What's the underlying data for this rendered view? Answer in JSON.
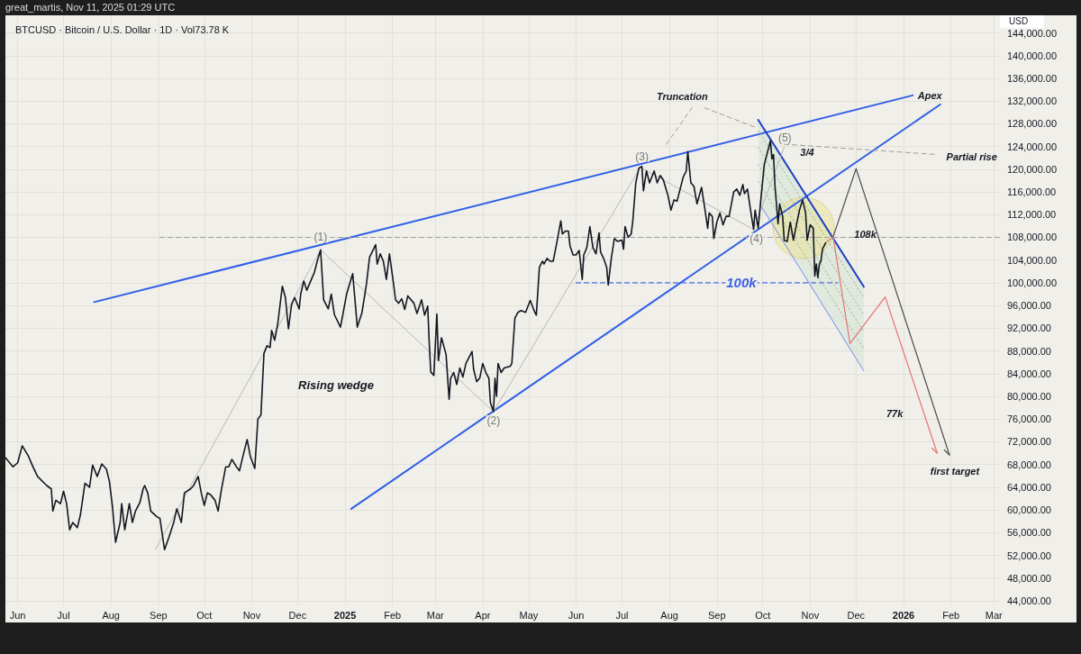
{
  "chart_data": {
    "type": "line",
    "title": "BTCUSD · Bitcoin / U.S. Dollar · 1D · Vol73.78 K",
    "ylabel": "USD",
    "annotations": [
      "great_martis, Nov 11, 2025 01:29 UTC",
      {
        "text": "(1)",
        "x": "2024-12-16",
        "y": 105800
      },
      {
        "text": "(2)",
        "x": "2025-04-08",
        "y": 77300
      },
      {
        "text": "(3)",
        "x": "2025-07-14",
        "y": 120500
      },
      {
        "text": "(4)",
        "x": "2025-09-25",
        "y": 109400
      },
      {
        "text": "(5)",
        "x": "2025-10-06",
        "y": 125000
      },
      {
        "text": "Truncation",
        "x": "2025-08-17",
        "y": 131300
      },
      {
        "text": "Apex",
        "x": "2026-01-07",
        "y": 133000
      },
      {
        "text": "3/4",
        "x": "2025-10-30",
        "y": 124100
      },
      {
        "text": "Partial rise",
        "x": "2026-01-22",
        "y": 122600
      },
      {
        "text": "108k",
        "x": "2025-12-07",
        "y": 108000
      },
      {
        "text": "100k",
        "x": "2025-09-17",
        "y": 100000
      },
      "Rising wedge",
      {
        "text": "77k",
        "x": "2026-01-14",
        "y": 77000
      },
      {
        "text": "first target",
        "x": "2026-01-31",
        "y": 69700
      }
    ],
    "xlim": [
      "2024-05-24",
      "2026-03-05"
    ],
    "ylim": [
      43200,
      147100
    ],
    "xticks": [
      {
        "value": "2024-06-01",
        "label": "Jun"
      },
      {
        "value": "2024-07-01",
        "label": "Jul"
      },
      {
        "value": "2024-08-01",
        "label": "Aug"
      },
      {
        "value": "2024-09-01",
        "label": "Sep"
      },
      {
        "value": "2024-10-01",
        "label": "Oct"
      },
      {
        "value": "2024-11-01",
        "label": "Nov"
      },
      {
        "value": "2024-12-01",
        "label": "Dec"
      },
      {
        "value": "2025-01-01",
        "label": "2025"
      },
      {
        "value": "2025-02-01",
        "label": "Feb"
      },
      {
        "value": "2025-03-01",
        "label": "Mar"
      },
      {
        "value": "2025-04-01",
        "label": "Apr"
      },
      {
        "value": "2025-05-01",
        "label": "May"
      },
      {
        "value": "2025-06-01",
        "label": "Jun"
      },
      {
        "value": "2025-07-01",
        "label": "Jul"
      },
      {
        "value": "2025-08-01",
        "label": "Aug"
      },
      {
        "value": "2025-09-01",
        "label": "Sep"
      },
      {
        "value": "2025-10-01",
        "label": "Oct"
      },
      {
        "value": "2025-11-01",
        "label": "Nov"
      },
      {
        "value": "2025-12-01",
        "label": "Dec"
      },
      {
        "value": "2026-01-01",
        "label": "2026"
      },
      {
        "value": "2026-02-01",
        "label": "Feb"
      },
      {
        "value": "2026-03-01",
        "label": "Mar"
      }
    ],
    "yticks": [
      {
        "value": 44000,
        "label": "44,000.00"
      },
      {
        "value": 48000,
        "label": "48,000.00"
      },
      {
        "value": 52000,
        "label": "52,000.00"
      },
      {
        "value": 56000,
        "label": "56,000.00"
      },
      {
        "value": 60000,
        "label": "60,000.00"
      },
      {
        "value": 64000,
        "label": "64,000.00"
      },
      {
        "value": 68000,
        "label": "68,000.00"
      },
      {
        "value": 72000,
        "label": "72,000.00"
      },
      {
        "value": 76000,
        "label": "76,000.00"
      },
      {
        "value": 80000,
        "label": "80,000.00"
      },
      {
        "value": 84000,
        "label": "84,000.00"
      },
      {
        "value": 88000,
        "label": "88,000.00"
      },
      {
        "value": 92000,
        "label": "92,000.00"
      },
      {
        "value": 96000,
        "label": "96,000.00"
      },
      {
        "value": 100000,
        "label": "100,000.00"
      },
      {
        "value": 104000,
        "label": "104,000.00"
      },
      {
        "value": 108000,
        "label": "108,000.00"
      },
      {
        "value": 112000,
        "label": "112,000.00"
      },
      {
        "value": 116000,
        "label": "116,000.00"
      },
      {
        "value": 120000,
        "label": "120,000.00"
      },
      {
        "value": 124000,
        "label": "124,000.00"
      },
      {
        "value": 128000,
        "label": "128,000.00"
      },
      {
        "value": 132000,
        "label": "132,000.00"
      },
      {
        "value": 136000,
        "label": "136,000.00"
      },
      {
        "value": 140000,
        "label": "140,000.00"
      },
      {
        "value": 144000,
        "label": "144,000.00"
      }
    ],
    "grid": true,
    "series": [
      {
        "color": "#131722",
        "x": [
          "2024-05-24",
          "2024-05-29",
          "2024-06-01",
          "2024-06-04",
          "2024-06-08",
          "2024-06-11",
          "2024-06-14",
          "2024-06-20",
          "2024-06-23",
          "2024-06-24",
          "2024-06-26",
          "2024-06-29",
          "2024-07-01",
          "2024-07-03",
          "2024-07-05",
          "2024-07-07",
          "2024-07-10",
          "2024-07-12",
          "2024-07-15",
          "2024-07-18",
          "2024-07-20",
          "2024-07-23",
          "2024-07-26",
          "2024-07-29",
          "2024-07-31",
          "2024-08-02",
          "2024-08-04",
          "2024-08-07",
          "2024-08-08",
          "2024-08-10",
          "2024-08-13",
          "2024-08-15",
          "2024-08-17",
          "2024-08-20",
          "2024-08-22",
          "2024-08-23",
          "2024-08-25",
          "2024-08-27",
          "2024-08-31",
          "2024-09-02",
          "2024-09-05",
          "2024-09-08",
          "2024-09-11",
          "2024-09-13",
          "2024-09-16",
          "2024-09-18",
          "2024-09-22",
          "2024-09-24",
          "2024-09-27",
          "2024-09-29",
          "2024-10-01",
          "2024-10-03",
          "2024-10-05",
          "2024-10-08",
          "2024-10-10",
          "2024-10-12",
          "2024-10-15",
          "2024-10-17",
          "2024-10-19",
          "2024-10-22",
          "2024-10-24",
          "2024-10-26",
          "2024-10-29",
          "2024-10-31",
          "2024-11-03",
          "2024-11-05",
          "2024-11-07",
          "2024-11-09",
          "2024-11-11",
          "2024-11-13",
          "2024-11-14",
          "2024-11-16",
          "2024-11-18",
          "2024-11-21",
          "2024-11-23",
          "2024-11-25",
          "2024-11-27",
          "2024-11-29",
          "2024-12-02",
          "2024-12-03",
          "2024-12-05",
          "2024-12-07",
          "2024-12-10",
          "2024-12-12",
          "2024-12-14",
          "2024-12-16",
          "2024-12-18",
          "2024-12-21",
          "2024-12-23",
          "2024-12-25",
          "2024-12-29",
          "2025-01-02",
          "2025-01-06",
          "2025-01-09",
          "2025-01-12",
          "2025-01-15",
          "2025-01-17",
          "2025-01-21",
          "2025-01-22",
          "2025-01-24",
          "2025-01-26",
          "2025-01-28",
          "2025-01-30",
          "2025-02-01",
          "2025-02-03",
          "2025-02-05",
          "2025-02-07",
          "2025-02-09",
          "2025-02-11",
          "2025-02-15",
          "2025-02-17",
          "2025-02-20",
          "2025-02-22",
          "2025-02-24",
          "2025-02-25",
          "2025-02-26",
          "2025-02-28",
          "2025-03-02",
          "2025-03-03",
          "2025-03-05",
          "2025-03-08",
          "2025-03-10",
          "2025-03-11",
          "2025-03-13",
          "2025-03-15",
          "2025-03-17",
          "2025-03-19",
          "2025-03-21",
          "2025-03-25",
          "2025-03-26",
          "2025-03-28",
          "2025-03-30",
          "2025-04-01",
          "2025-04-03",
          "2025-04-05",
          "2025-04-06",
          "2025-04-08",
          "2025-04-09",
          "2025-04-10",
          "2025-04-11",
          "2025-04-13",
          "2025-04-15",
          "2025-04-19",
          "2025-04-20",
          "2025-04-22",
          "2025-04-24",
          "2025-04-26",
          "2025-04-29",
          "2025-05-02",
          "2025-05-05",
          "2025-05-06",
          "2025-05-08",
          "2025-05-10",
          "2025-05-11",
          "2025-05-13",
          "2025-05-15",
          "2025-05-17",
          "2025-05-19",
          "2025-05-22",
          "2025-05-23",
          "2025-05-25",
          "2025-05-27",
          "2025-05-28",
          "2025-05-30",
          "2025-06-01",
          "2025-06-03",
          "2025-06-05",
          "2025-06-06",
          "2025-06-08",
          "2025-06-10",
          "2025-06-12",
          "2025-06-14",
          "2025-06-16",
          "2025-06-17",
          "2025-06-19",
          "2025-06-21",
          "2025-06-22",
          "2025-06-24",
          "2025-06-26",
          "2025-06-28",
          "2025-07-01",
          "2025-07-02",
          "2025-07-03",
          "2025-07-05",
          "2025-07-07",
          "2025-07-08",
          "2025-07-10",
          "2025-07-12",
          "2025-07-14",
          "2025-07-15",
          "2025-07-17",
          "2025-07-19",
          "2025-07-22",
          "2025-07-24",
          "2025-07-26",
          "2025-07-28",
          "2025-07-31",
          "2025-08-02",
          "2025-08-04",
          "2025-08-06",
          "2025-08-08",
          "2025-08-10",
          "2025-08-12",
          "2025-08-13",
          "2025-08-15",
          "2025-08-17",
          "2025-08-19",
          "2025-08-22",
          "2025-08-24",
          "2025-08-26",
          "2025-08-27",
          "2025-08-29",
          "2025-08-30",
          "2025-09-01",
          "2025-09-03",
          "2025-09-05",
          "2025-09-07",
          "2025-09-09",
          "2025-09-12",
          "2025-09-14",
          "2025-09-16",
          "2025-09-18",
          "2025-09-19",
          "2025-09-21",
          "2025-09-23",
          "2025-09-25",
          "2025-09-26",
          "2025-09-28",
          "2025-09-30",
          "2025-10-02",
          "2025-10-04",
          "2025-10-06",
          "2025-10-07",
          "2025-10-08",
          "2025-10-09",
          "2025-10-11",
          "2025-10-12",
          "2025-10-14",
          "2025-10-15",
          "2025-10-17",
          "2025-10-19",
          "2025-10-21",
          "2025-10-23",
          "2025-10-25",
          "2025-10-27",
          "2025-10-29",
          "2025-10-30",
          "2025-11-01",
          "2025-11-03",
          "2025-11-04",
          "2025-11-05",
          "2025-11-06",
          "2025-11-07",
          "2025-11-08",
          "2025-11-09",
          "2025-11-11"
        ],
        "values": [
          69200,
          67600,
          68300,
          71300,
          69500,
          67600,
          65900,
          64300,
          63700,
          59800,
          61700,
          61100,
          63300,
          61100,
          56500,
          57800,
          56900,
          59100,
          64700,
          64000,
          67900,
          65900,
          68100,
          67200,
          65000,
          60500,
          54300,
          57800,
          61100,
          56500,
          61100,
          57800,
          59800,
          61400,
          63700,
          64300,
          63000,
          59800,
          58800,
          58500,
          53000,
          55300,
          57800,
          60200,
          57800,
          63000,
          63700,
          64300,
          65900,
          63000,
          60800,
          63000,
          62700,
          61700,
          59800,
          63300,
          67600,
          67600,
          68900,
          67600,
          66900,
          69200,
          72400,
          69500,
          67300,
          76000,
          76700,
          87600,
          88900,
          88600,
          91600,
          89900,
          92800,
          99400,
          97400,
          91900,
          96100,
          97400,
          95400,
          98000,
          100300,
          98700,
          100600,
          101900,
          104000,
          105800,
          97000,
          95400,
          98000,
          94400,
          92200,
          98000,
          101600,
          92200,
          94700,
          99800,
          104500,
          106700,
          103300,
          105100,
          103800,
          100600,
          105100,
          101200,
          97000,
          96400,
          97200,
          95300,
          97700,
          96400,
          94600,
          97000,
          94300,
          95900,
          89500,
          84300,
          83700,
          94500,
          86300,
          90300,
          87400,
          79500,
          83200,
          84200,
          82100,
          85000,
          83400,
          85800,
          87900,
          84800,
          82600,
          83200,
          85800,
          84200,
          83200,
          78900,
          77300,
          83200,
          80000,
          85800,
          84200,
          85000,
          85300,
          85800,
          93800,
          94800,
          95100,
          94800,
          96900,
          94800,
          94300,
          102700,
          103800,
          103300,
          104300,
          103800,
          103800,
          106500,
          110900,
          108600,
          109100,
          109100,
          106500,
          104900,
          104900,
          105700,
          100600,
          104900,
          106200,
          109900,
          106200,
          105100,
          108800,
          105400,
          104300,
          102700,
          99600,
          104300,
          107800,
          107300,
          107500,
          105900,
          109900,
          108000,
          108600,
          110700,
          117600,
          120200,
          120500,
          116200,
          119700,
          117600,
          119700,
          117600,
          118900,
          118100,
          115400,
          112800,
          114600,
          114400,
          116500,
          118600,
          119700,
          123100,
          117600,
          117000,
          113900,
          116800,
          113300,
          109600,
          112300,
          111700,
          107800,
          110700,
          112300,
          110200,
          111700,
          111700,
          116000,
          116500,
          115400,
          117300,
          115700,
          116500,
          112800,
          109400,
          112800,
          109600,
          115400,
          120800,
          122900,
          125000,
          121800,
          122600,
          117000,
          110400,
          113900,
          111700,
          107500,
          107300,
          110700,
          107500,
          110200,
          112800,
          114600,
          112300,
          107500,
          110200,
          109600,
          101200,
          103300,
          100900,
          103300,
          103800,
          105900,
          107000
        ]
      },
      {
        "color": "#2f5fe6",
        "x": [
          "2024-07-21",
          "2026-01-07"
        ],
        "values": [
          96600,
          133000
        ]
      },
      {
        "color": "#2f5fe6",
        "x": [
          "2025-01-05",
          "2026-01-25"
        ],
        "values": [
          60200,
          131400
        ]
      },
      {
        "color": "#1c3fc2",
        "x": [
          "2025-09-28",
          "2025-12-06"
        ],
        "values": [
          128700,
          99300
        ]
      },
      {
        "color": "#6d8ff0",
        "x": [
          "2025-09-29",
          "2025-12-06"
        ],
        "values": [
          113900,
          84500
        ]
      },
      {
        "color": "#b8b8b8",
        "x": [
          "2024-08-30",
          "2024-12-16",
          "2025-04-08",
          "2025-07-13",
          "2025-09-25",
          "2025-10-15"
        ],
        "values": [
          53000,
          105800,
          77300,
          120300,
          109400,
          123900
        ]
      },
      {
        "color": "#4d4d4d",
        "x": [
          "2025-11-16",
          "2025-12-01",
          "2026-01-31"
        ],
        "values": [
          108100,
          120100,
          69700
        ]
      },
      {
        "color": "#e57373",
        "x": [
          "2025-11-11",
          "2025-11-16",
          "2025-11-27",
          "2025-12-20",
          "2026-01-23"
        ],
        "values": [
          107000,
          108100,
          89300,
          97500,
          70000
        ]
      },
      {
        "color": "#9e9e9e",
        "line_style": "dashed",
        "x": [
          "2024-09-02",
          "2026-03-05"
        ],
        "values": [
          108000,
          108000
        ]
      },
      {
        "color": "#4f6fe8",
        "line_style": "dashed",
        "x": [
          "2025-06-01",
          "2025-11-19"
        ],
        "values": [
          100000,
          100000
        ]
      },
      {
        "color": "#9e9e9e",
        "line_style": "dashed",
        "x": [
          "2025-07-30",
          "2025-08-17"
        ],
        "values": [
          124400,
          131300
        ]
      },
      {
        "color": "#9e9e9e",
        "line_style": "dashed",
        "x": [
          "2025-08-24",
          "2025-09-27"
        ],
        "values": [
          130800,
          127300
        ]
      },
      {
        "color": "#9e9e9e",
        "line_style": "dashed",
        "x": [
          "2025-10-15",
          "2026-01-22"
        ],
        "values": [
          124400,
          122600
        ]
      },
      {
        "color": "#9fb59a",
        "line_style": "dotted",
        "x": [
          "2025-09-28",
          "2025-12-06"
        ],
        "values": [
          126800,
          97400
        ]
      },
      {
        "color": "#9fb59a",
        "line_style": "dotted",
        "x": [
          "2025-09-28",
          "2025-12-06"
        ],
        "values": [
          123800,
          94400
        ]
      },
      {
        "color": "#9fb59a",
        "line_style": "dotted",
        "x": [
          "2025-09-28",
          "2025-12-06"
        ],
        "values": [
          120800,
          91400
        ]
      },
      {
        "color": "#9fb59a",
        "line_style": "dotted",
        "x": [
          "2025-09-28",
          "2025-12-06"
        ],
        "values": [
          117800,
          88400
        ]
      }
    ]
  }
}
